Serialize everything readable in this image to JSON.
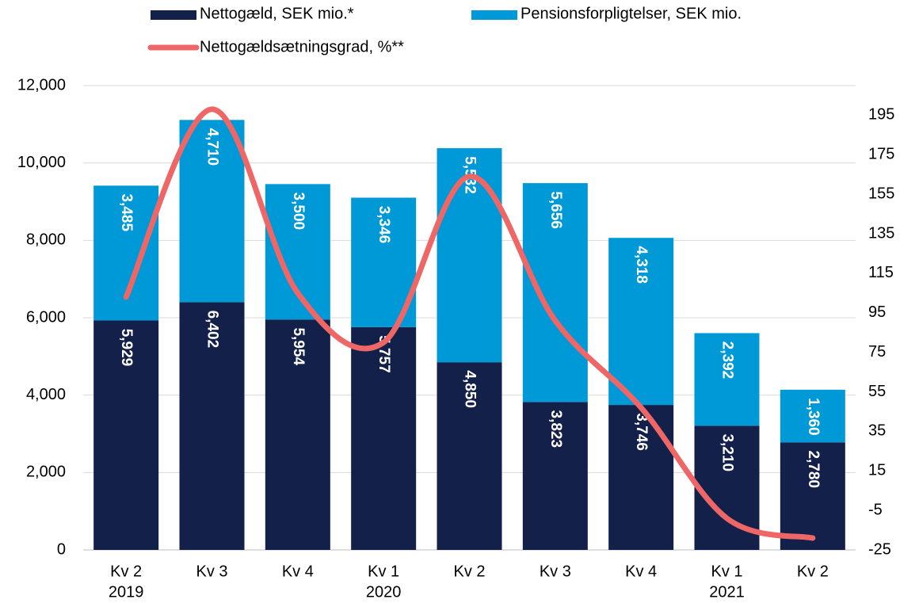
{
  "chart_data": {
    "type": "bar",
    "categories": [
      [
        "Kv 2",
        "2019"
      ],
      [
        "Kv 3"
      ],
      [
        "Kv 4"
      ],
      [
        "Kv 1",
        "2020"
      ],
      [
        "Kv 2"
      ],
      [
        "Kv 3"
      ],
      [
        "Kv 4"
      ],
      [
        "Kv 1",
        "2021"
      ],
      [
        "Kv 2"
      ]
    ],
    "series": [
      {
        "name": "Nettogæld, SEK mio.*",
        "color": "#13204a",
        "type": "bar",
        "values": [
          5929,
          6402,
          5954,
          5757,
          4850,
          3823,
          3746,
          3210,
          2780
        ],
        "value_labels": [
          "5,929",
          "6,402",
          "5,954",
          "5,757",
          "4,850",
          "3,823",
          "3,746",
          "3,210",
          "2,780"
        ]
      },
      {
        "name": "Pensionsforpligtelser, SEK mio.",
        "color": "#0099d8",
        "type": "bar",
        "values": [
          3485,
          4710,
          3500,
          3346,
          5532,
          5656,
          4318,
          2392,
          1360
        ],
        "value_labels": [
          "3,485",
          "4,710",
          "3,500",
          "3,346",
          "5,532",
          "5,656",
          "4,318",
          "2,392",
          "1,360"
        ]
      },
      {
        "name": "Nettogældsætningsgrad, %**",
        "color": "#ee6666",
        "type": "line",
        "axis": "y2",
        "values": [
          103,
          198,
          105,
          80,
          164,
          91,
          47,
          -9,
          -19
        ]
      }
    ],
    "ylim": [
      0,
      12000
    ],
    "yticks": [
      0,
      {
        "value": 2000,
        "label": "2,000"
      },
      {
        "value": 4000,
        "label": "4,000"
      },
      {
        "value": 6000,
        "label": "6,000"
      },
      {
        "value": 8000,
        "label": "8,000"
      },
      {
        "value": 10000,
        "label": "10,000"
      },
      {
        "value": 12000,
        "label": "12,000"
      }
    ],
    "y2lim": [
      -25,
      210
    ],
    "y2ticks": [
      -25,
      -5,
      15,
      35,
      55,
      75,
      95,
      115,
      135,
      155,
      175,
      195
    ],
    "grid": true,
    "stacked": true,
    "legend": "top"
  }
}
